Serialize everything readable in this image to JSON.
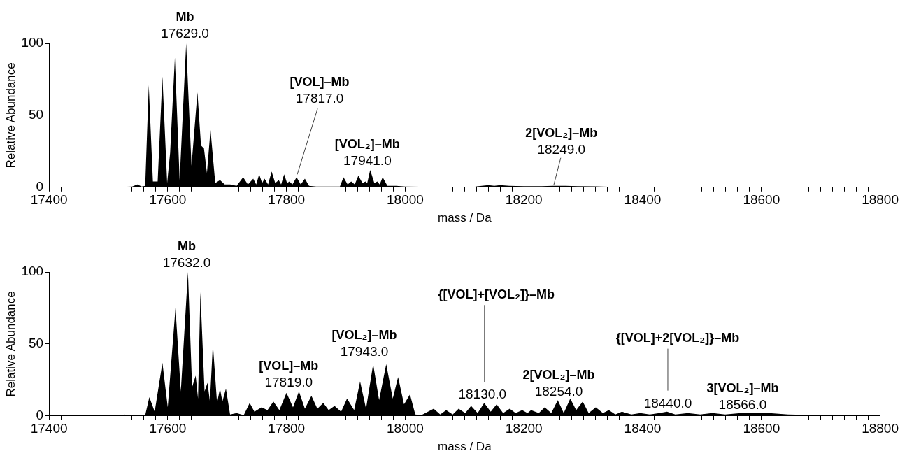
{
  "chart_data": [
    {
      "type": "area",
      "xlabel": "mass / Da",
      "ylabel": "Relative Abundance",
      "color": "#000000",
      "x": [
        17505,
        17540,
        17549,
        17556,
        17562,
        17568,
        17575,
        17583,
        17591,
        17599,
        17604,
        17612,
        17620,
        17631,
        17640,
        17650,
        17656,
        17661,
        17666,
        17672,
        17680,
        17688,
        17696,
        17705,
        17716,
        17727,
        17735,
        17744,
        17749,
        17754,
        17759,
        17763,
        17769,
        17775,
        17781,
        17787,
        17791,
        17796,
        17801,
        17805,
        17810,
        17817,
        17824,
        17831,
        17838,
        17850,
        17870,
        17890,
        17896,
        17903,
        17909,
        17915,
        17921,
        17928,
        17933,
        17936,
        17941,
        17948,
        17953,
        17957,
        17962,
        17970,
        17985,
        18000,
        18050,
        18096,
        18105,
        18118,
        18140,
        18150,
        18160,
        18175,
        18200,
        18230,
        18249,
        18270,
        18290,
        18320,
        18351
      ],
      "values": [
        0,
        0.5,
        2,
        0.5,
        1,
        71,
        4,
        4,
        77,
        3,
        24,
        90,
        5,
        100,
        15,
        66,
        29,
        27,
        10,
        40,
        3,
        5,
        2,
        2,
        1,
        7,
        2,
        6,
        2,
        9,
        3,
        6,
        2,
        11,
        3,
        5,
        2,
        9,
        3,
        4,
        2,
        7,
        2,
        6,
        1,
        0.5,
        0.5,
        0.5,
        7,
        2,
        4,
        2,
        8,
        3,
        4,
        3,
        12,
        3,
        4,
        2,
        7,
        1,
        1,
        0.5,
        0.3,
        0.3,
        null,
        0.5,
        1.5,
        1,
        1.5,
        1,
        0.8,
        0.8,
        1,
        1,
        0.8,
        0.6,
        0.3
      ],
      "xlim": [
        17400,
        18800
      ],
      "xticks": [
        17400,
        {
          "value": 17420,
          "label": null
        },
        {
          "value": 17440,
          "label": null
        },
        {
          "value": 17460,
          "label": null
        },
        {
          "value": 17480,
          "label": null
        },
        {
          "value": 17500,
          "label": null
        },
        {
          "value": 17520,
          "label": null
        },
        {
          "value": 17540,
          "label": null
        },
        {
          "value": 17560,
          "label": null
        },
        {
          "value": 17580,
          "label": null
        },
        17600,
        {
          "value": 17620,
          "label": null
        },
        {
          "value": 17640,
          "label": null
        },
        {
          "value": 17660,
          "label": null
        },
        {
          "value": 17680,
          "label": null
        },
        {
          "value": 17700,
          "label": null
        },
        {
          "value": 17720,
          "label": null
        },
        {
          "value": 17740,
          "label": null
        },
        {
          "value": 17760,
          "label": null
        },
        {
          "value": 17780,
          "label": null
        },
        17800,
        {
          "value": 17820,
          "label": null
        },
        {
          "value": 17840,
          "label": null
        },
        {
          "value": 17860,
          "label": null
        },
        {
          "value": 17880,
          "label": null
        },
        {
          "value": 17900,
          "label": null
        },
        {
          "value": 17920,
          "label": null
        },
        {
          "value": 17940,
          "label": null
        },
        {
          "value": 17960,
          "label": null
        },
        {
          "value": 17980,
          "label": null
        },
        18000,
        {
          "value": 18020,
          "label": null
        },
        {
          "value": 18040,
          "label": null
        },
        {
          "value": 18060,
          "label": null
        },
        {
          "value": 18080,
          "label": null
        },
        {
          "value": 18100,
          "label": null
        },
        {
          "value": 18120,
          "label": null
        },
        {
          "value": 18140,
          "label": null
        },
        {
          "value": 18160,
          "label": null
        },
        {
          "value": 18180,
          "label": null
        },
        18200,
        {
          "value": 18220,
          "label": null
        },
        {
          "value": 18240,
          "label": null
        },
        {
          "value": 18260,
          "label": null
        },
        {
          "value": 18280,
          "label": null
        },
        {
          "value": 18300,
          "label": null
        },
        {
          "value": 18320,
          "label": null
        },
        {
          "value": 18340,
          "label": null
        },
        {
          "value": 18360,
          "label": null
        },
        {
          "value": 18380,
          "label": null
        },
        18400,
        {
          "value": 18420,
          "label": null
        },
        {
          "value": 18440,
          "label": null
        },
        {
          "value": 18460,
          "label": null
        },
        {
          "value": 18480,
          "label": null
        },
        {
          "value": 18500,
          "label": null
        },
        {
          "value": 18520,
          "label": null
        },
        {
          "value": 18540,
          "label": null
        },
        {
          "value": 18560,
          "label": null
        },
        {
          "value": 18580,
          "label": null
        },
        18600,
        {
          "value": 18620,
          "label": null
        },
        {
          "value": 18640,
          "label": null
        },
        {
          "value": 18660,
          "label": null
        },
        {
          "value": 18680,
          "label": null
        },
        {
          "value": 18700,
          "label": null
        },
        {
          "value": 18720,
          "label": null
        },
        {
          "value": 18740,
          "label": null
        },
        {
          "value": 18760,
          "label": null
        },
        {
          "value": 18780,
          "label": null
        },
        18800
      ],
      "ylim": [
        0,
        100
      ],
      "yticks": [
        0,
        50,
        100
      ],
      "annotations": [
        {
          "text": "Mb\n17629.0",
          "x": 17629,
          "y": 100
        },
        {
          "text": "[VOL]–Mb\n17817.0",
          "x": 17817,
          "y": 7
        },
        {
          "text": "[VOL₂]–Mb\n17941.0",
          "x": 17941,
          "y": 12
        },
        {
          "text": "2[VOL₂]–Mb\n18249.0",
          "x": 18249,
          "y": 1
        }
      ]
    },
    {
      "type": "area",
      "xlabel": "mass / Da",
      "ylabel": "Relative Abundance",
      "color": "#000000",
      "x": [
        17505,
        17520,
        17527,
        17534,
        17562,
        17569,
        17578,
        17591,
        17600,
        17613,
        17622,
        17634,
        17641,
        17647,
        17651,
        17655,
        17662,
        17667,
        17671,
        17676,
        17683,
        17688,
        17692,
        17698,
        17705,
        17716,
        17728,
        17738,
        17746,
        17758,
        17768,
        17778,
        17788,
        17800,
        17811,
        17821,
        17831,
        17842,
        17852,
        17862,
        17871,
        17881,
        17892,
        17902,
        17914,
        17924,
        17934,
        17946,
        17956,
        17968,
        17979,
        17988,
        17998,
        18008,
        18017,
        18027,
        18048,
        18059,
        18069,
        18080,
        18090,
        18101,
        18111,
        18122,
        18133,
        18144,
        18154,
        18165,
        18176,
        18186,
        18197,
        18206,
        18212,
        18225,
        18235,
        18246,
        18257,
        18267,
        18278,
        18288,
        18299,
        18309,
        18321,
        18333,
        18343,
        18354,
        18365,
        18381,
        18396,
        18412,
        18428,
        18441,
        18455,
        18476,
        18497,
        18518,
        18539,
        18565,
        18592,
        18613,
        18645,
        18697,
        18703,
        18730,
        18755,
        18792
      ],
      "values": [
        0,
        0,
        1,
        0,
        0.5,
        13,
        3,
        37,
        6,
        75,
        17,
        100,
        20,
        28,
        12,
        86,
        17,
        23,
        10,
        50,
        9,
        19,
        10,
        19,
        1,
        2,
        0.5,
        9,
        3,
        6,
        4,
        10,
        4,
        16,
        6,
        17,
        5,
        14,
        5,
        9,
        4,
        7,
        3,
        12,
        4,
        24,
        5,
        36,
        11,
        36,
        12,
        27,
        8,
        15,
        1,
        0.5,
        5,
        1,
        4,
        1,
        5,
        2,
        7,
        2,
        9,
        3,
        8,
        2,
        5,
        2,
        4,
        2,
        4,
        2,
        6,
        2,
        11,
        2,
        12,
        4,
        10,
        2,
        6,
        2,
        4,
        1,
        3,
        1,
        2,
        1,
        2,
        3,
        1,
        2,
        1,
        2,
        1,
        2,
        2,
        2,
        1,
        0.5,
        0.3,
        null,
        0.5,
        0.5
      ],
      "xlim": [
        17400,
        18800
      ],
      "xticks": [
        17400,
        {
          "value": 17420,
          "label": null
        },
        {
          "value": 17440,
          "label": null
        },
        {
          "value": 17460,
          "label": null
        },
        {
          "value": 17480,
          "label": null
        },
        {
          "value": 17500,
          "label": null
        },
        {
          "value": 17520,
          "label": null
        },
        {
          "value": 17540,
          "label": null
        },
        {
          "value": 17560,
          "label": null
        },
        {
          "value": 17580,
          "label": null
        },
        17600,
        {
          "value": 17620,
          "label": null
        },
        {
          "value": 17640,
          "label": null
        },
        {
          "value": 17660,
          "label": null
        },
        {
          "value": 17680,
          "label": null
        },
        {
          "value": 17700,
          "label": null
        },
        {
          "value": 17720,
          "label": null
        },
        {
          "value": 17740,
          "label": null
        },
        {
          "value": 17760,
          "label": null
        },
        {
          "value": 17780,
          "label": null
        },
        17800,
        {
          "value": 17820,
          "label": null
        },
        {
          "value": 17840,
          "label": null
        },
        {
          "value": 17860,
          "label": null
        },
        {
          "value": 17880,
          "label": null
        },
        {
          "value": 17900,
          "label": null
        },
        {
          "value": 17920,
          "label": null
        },
        {
          "value": 17940,
          "label": null
        },
        {
          "value": 17960,
          "label": null
        },
        {
          "value": 17980,
          "label": null
        },
        18000,
        {
          "value": 18020,
          "label": null
        },
        {
          "value": 18040,
          "label": null
        },
        {
          "value": 18060,
          "label": null
        },
        {
          "value": 18080,
          "label": null
        },
        {
          "value": 18100,
          "label": null
        },
        {
          "value": 18120,
          "label": null
        },
        {
          "value": 18140,
          "label": null
        },
        {
          "value": 18160,
          "label": null
        },
        {
          "value": 18180,
          "label": null
        },
        18200,
        {
          "value": 18220,
          "label": null
        },
        {
          "value": 18240,
          "label": null
        },
        {
          "value": 18260,
          "label": null
        },
        {
          "value": 18280,
          "label": null
        },
        {
          "value": 18300,
          "label": null
        },
        {
          "value": 18320,
          "label": null
        },
        {
          "value": 18340,
          "label": null
        },
        {
          "value": 18360,
          "label": null
        },
        {
          "value": 18380,
          "label": null
        },
        18400,
        {
          "value": 18420,
          "label": null
        },
        {
          "value": 18440,
          "label": null
        },
        {
          "value": 18460,
          "label": null
        },
        {
          "value": 18480,
          "label": null
        },
        {
          "value": 18500,
          "label": null
        },
        {
          "value": 18520,
          "label": null
        },
        {
          "value": 18540,
          "label": null
        },
        {
          "value": 18560,
          "label": null
        },
        {
          "value": 18580,
          "label": null
        },
        18600,
        {
          "value": 18620,
          "label": null
        },
        {
          "value": 18640,
          "label": null
        },
        {
          "value": 18660,
          "label": null
        },
        {
          "value": 18680,
          "label": null
        },
        {
          "value": 18700,
          "label": null
        },
        {
          "value": 18720,
          "label": null
        },
        {
          "value": 18740,
          "label": null
        },
        {
          "value": 18760,
          "label": null
        },
        {
          "value": 18780,
          "label": null
        },
        18800
      ],
      "ylim": [
        0,
        100
      ],
      "yticks": [
        0,
        50,
        100
      ],
      "annotations": [
        {
          "text": "Mb\n17632.0",
          "x": 17632,
          "y": 100
        },
        {
          "text": "[VOL]–Mb\n17819.0",
          "x": 17819,
          "y": 17
        },
        {
          "text": "[VOL₂]–Mb\n17943.0",
          "x": 17943,
          "y": 36
        },
        "{[VOL]+[VOL₂]}–Mb",
        {
          "text": "18130.0",
          "x": 18130,
          "y": 9
        },
        {
          "text": "2[VOL₂]–Mb\n18254.0",
          "x": 18254,
          "y": 11
        },
        "{[VOL]+2[VOL₂]}–Mb",
        {
          "text": "18440.0",
          "x": 18440,
          "y": 3
        },
        {
          "text": "3[VOL₂]–Mb\n18566.0",
          "x": 18566,
          "y": 2
        }
      ]
    }
  ]
}
